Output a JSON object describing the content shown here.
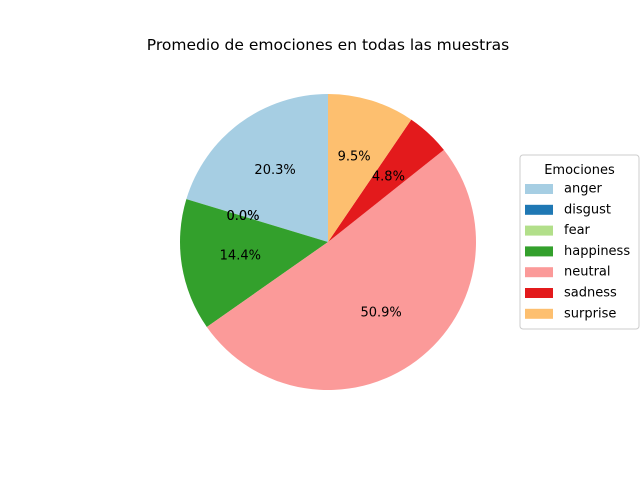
{
  "chart_data": {
    "type": "pie",
    "title": "Promedio de emociones en todas las muestras",
    "legend_title": "Emociones",
    "legend_position": "right",
    "start_angle_deg": 90,
    "direction": "counterclockwise",
    "slices": [
      {
        "label": "anger",
        "value": 20.3,
        "label_text": "20.3%",
        "color": "#a6cee3"
      },
      {
        "label": "disgust",
        "value": 0.0,
        "label_text": "0.0%",
        "color": "#1f78b4"
      },
      {
        "label": "fear",
        "value": 0.0,
        "label_text": "0.0%",
        "color": "#b2df8a"
      },
      {
        "label": "happiness",
        "value": 14.4,
        "label_text": "14.4%",
        "color": "#33a02c"
      },
      {
        "label": "neutral",
        "value": 50.9,
        "label_text": "50.9%",
        "color": "#fb9a99"
      },
      {
        "label": "sadness",
        "value": 4.8,
        "label_text": "4.8%",
        "color": "#e31a1c"
      },
      {
        "label": "surprise",
        "value": 9.5,
        "label_text": "9.5%",
        "color": "#fdbf6f"
      }
    ]
  }
}
